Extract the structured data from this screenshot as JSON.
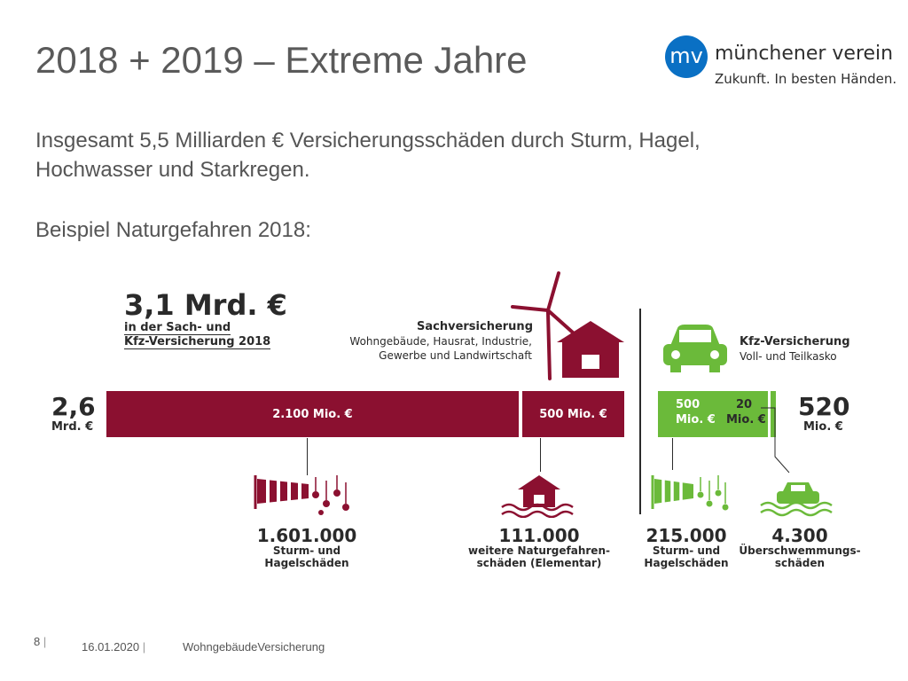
{
  "title": "2018 + 2019 – Extreme Jahre",
  "logo": {
    "mark": "mv",
    "name": "münchener verein",
    "tagline": "Zukunft. In besten Händen.",
    "color": "#0a70c4"
  },
  "intro": {
    "line1": "Insgesamt 5,5 Milliarden € Versicherungsschäden durch Sturm, Hagel,",
    "line2": "Hochwasser und Starkregen.",
    "line3": "Beispiel Naturgefahren 2018:"
  },
  "infographic": {
    "total": {
      "amount": "3,1 Mrd. €",
      "desc1": "in der Sach- und",
      "desc2": "Kfz-Versicherung 2018"
    },
    "sach": {
      "title": "Sachversicherung",
      "desc1": "Wohngebäude, Hausrat, Industrie,",
      "desc2": "Gewerbe und Landwirtschaft",
      "color": "#8b1030"
    },
    "kfz": {
      "title": "Kfz-Versicherung",
      "desc": "Voll- und Teilkasko",
      "color": "#6bba3a"
    },
    "left_total": {
      "value": "2,6",
      "unit": "Mrd. €"
    },
    "right_total": {
      "value": "520",
      "unit": "Mio. €"
    },
    "bars": {
      "sach_storm": "2.100 Mio. €",
      "sach_elementar": "500 Mio. €",
      "kfz_storm_a": "500",
      "kfz_storm_b": "Mio. €",
      "kfz_flood_a": "20",
      "kfz_flood_b": "Mio. €"
    },
    "stats": [
      {
        "value": "1.601.000",
        "label1": "Sturm- und",
        "label2": "Hagelschäden",
        "icon": "windsock-hail-icon"
      },
      {
        "value": "111.000",
        "label1": "weitere Naturgefahren-",
        "label2": "schäden (Elementar)",
        "icon": "flooded-house-icon"
      },
      {
        "value": "215.000",
        "label1": "Sturm- und",
        "label2": "Hagelschäden",
        "icon": "windsock-hail-icon"
      },
      {
        "value": "4.300",
        "label1": "Überschwemmungs-",
        "label2": "schäden",
        "icon": "flooded-car-icon"
      }
    ]
  },
  "footer": {
    "page": "8",
    "date": "16.01.2020",
    "doc": "WohngebäudeVersicherung"
  }
}
